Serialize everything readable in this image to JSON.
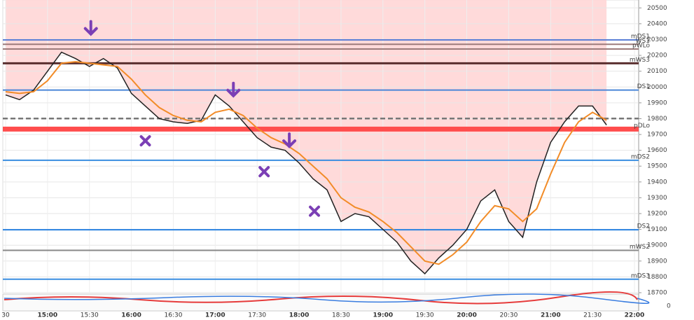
{
  "chart_data": {
    "type": "line",
    "ylim": [
      18700,
      20550
    ],
    "yticks": [
      18700,
      18800,
      18900,
      19000,
      19100,
      19200,
      19300,
      19400,
      19500,
      19600,
      19700,
      19800,
      19900,
      20000,
      20100,
      20200,
      20300,
      20400,
      20500
    ],
    "xlim": [
      "14:28",
      "22:03"
    ],
    "xticks": [
      {
        "value": "14:30",
        "label": "30"
      },
      "15:00",
      "15:30",
      "16:00",
      "16:30",
      "17:00",
      "17:30",
      "18:00",
      "18:30",
      "19:00",
      "19:30",
      "20:00",
      "20:30",
      "21:00",
      "21:30",
      "22:00"
    ],
    "grid": true,
    "x": [
      "14:30",
      "14:40",
      "14:50",
      "15:00",
      "15:10",
      "15:20",
      "15:30",
      "15:40",
      "15:50",
      "16:00",
      "16:10",
      "16:20",
      "16:30",
      "16:40",
      "16:50",
      "17:00",
      "17:10",
      "17:20",
      "17:30",
      "17:40",
      "17:50",
      "18:00",
      "18:10",
      "18:20",
      "18:30",
      "18:40",
      "18:50",
      "19:00",
      "19:10",
      "19:20",
      "19:30",
      "19:40",
      "19:50",
      "20:00",
      "20:10",
      "20:20",
      "20:30",
      "20:40",
      "20:50",
      "21:00",
      "21:10",
      "21:20",
      "21:30",
      "21:40"
    ],
    "series": [
      {
        "color": "#222222",
        "values": [
          19950,
          19920,
          19980,
          20100,
          20220,
          20180,
          20130,
          20180,
          20120,
          19960,
          19880,
          19800,
          19780,
          19770,
          19790,
          19950,
          19880,
          19780,
          19680,
          19620,
          19600,
          19520,
          19420,
          19350,
          19150,
          19200,
          19180,
          19100,
          19020,
          18900,
          18820,
          18920,
          19000,
          19100,
          19280,
          19350,
          19150,
          19050,
          19400,
          19650,
          19780,
          19880,
          19880,
          19760
        ]
      },
      {
        "color": "#f28c28",
        "values": [
          19970,
          19960,
          19970,
          20040,
          20150,
          20160,
          20150,
          20140,
          20130,
          20050,
          19950,
          19870,
          19820,
          19790,
          19780,
          19840,
          19860,
          19820,
          19740,
          19680,
          19640,
          19580,
          19500,
          19420,
          19300,
          19240,
          19210,
          19150,
          19080,
          18990,
          18900,
          18880,
          18940,
          19020,
          19150,
          19250,
          19230,
          19150,
          19230,
          19450,
          19650,
          19780,
          19840,
          19790
        ]
      }
    ],
    "levels": [
      {
        "name": "mDS1",
        "value": 20298,
        "color": "#5b7fd6",
        "width": 2
      },
      {
        "name": "WS1",
        "value": 20270,
        "color": "#9c7b7b",
        "width": 2
      },
      {
        "name": "pWLo",
        "value": 20240,
        "color": "#9c7b7b",
        "width": 2
      },
      {
        "name": "mWS3",
        "value": 20150,
        "color": "#5a2f2f",
        "width": 3
      },
      {
        "name": "DS1",
        "value": 19981,
        "color": "#4a86d8",
        "width": 2
      },
      {
        "name": "pDLo",
        "value": 19734,
        "color": "#ff4d4d",
        "width": 7
      },
      {
        "name": "mDS2",
        "value": 19537,
        "color": "#3a8ee0",
        "width": 2
      },
      {
        "name": "DS2",
        "value": 19098,
        "color": "#2a82e0",
        "width": 2
      },
      {
        "name": "mWS2",
        "value": 18968,
        "color": "#888888",
        "width": 2
      },
      {
        "name": "mDS3",
        "value": 18785,
        "color": "#3a8ee0",
        "width": 2
      }
    ],
    "dashed_level": {
      "value": 19801,
      "color": "#777777"
    },
    "signals": [
      {
        "kind": "arrow",
        "x": "15:31",
        "y": 20370
      },
      {
        "kind": "arrow",
        "x": "17:13",
        "y": 19980
      },
      {
        "kind": "arrow",
        "x": "17:53",
        "y": 19660
      },
      {
        "kind": "cross",
        "x": "16:10",
        "y": 19660
      },
      {
        "kind": "cross",
        "x": "17:35",
        "y": 19465
      },
      {
        "kind": "cross",
        "x": "18:11",
        "y": 19215
      }
    ],
    "lower_panel": {
      "yticks": [
        0
      ]
    }
  }
}
